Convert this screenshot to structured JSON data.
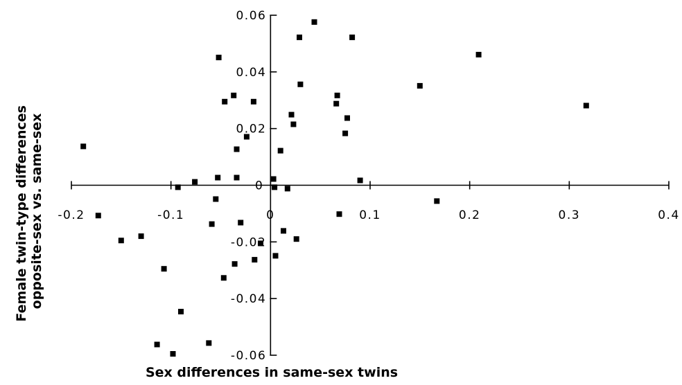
{
  "chart_data": {
    "type": "scatter",
    "xlabel": "Sex differences in same-sex twins",
    "ylabel_lines": [
      "Female twin-type differences",
      "opposite-sex vs. same-sex"
    ],
    "xlim": [
      -0.2,
      0.4
    ],
    "ylim": [
      -0.06,
      0.06
    ],
    "xticks": [
      -0.2,
      -0.1,
      0,
      0.1,
      0.2,
      0.3,
      0.4
    ],
    "xtick_labels": [
      "-0.2",
      "-0.1",
      "0",
      "0.1",
      "0.2",
      "0.3",
      "0.4"
    ],
    "yticks": [
      -0.06,
      -0.04,
      -0.02,
      0,
      0.02,
      0.04,
      0.06
    ],
    "ytick_labels": [
      "-0.06",
      "-0.04",
      "-0.02",
      "0",
      "0.02",
      "0.04",
      "0.06"
    ],
    "grid": false,
    "legend": "none",
    "marker_color": "#000000",
    "points": [
      {
        "x": -0.188,
        "y": 0.0137
      },
      {
        "x": -0.173,
        "y": -0.0107
      },
      {
        "x": -0.15,
        "y": -0.0195
      },
      {
        "x": -0.13,
        "y": -0.018
      },
      {
        "x": -0.107,
        "y": -0.0295
      },
      {
        "x": -0.114,
        "y": -0.0562
      },
      {
        "x": -0.098,
        "y": -0.0595
      },
      {
        "x": -0.09,
        "y": -0.0446
      },
      {
        "x": -0.093,
        "y": -0.0007
      },
      {
        "x": -0.076,
        "y": 0.0012
      },
      {
        "x": -0.062,
        "y": -0.0557
      },
      {
        "x": -0.059,
        "y": -0.0137
      },
      {
        "x": -0.055,
        "y": -0.0049
      },
      {
        "x": -0.053,
        "y": 0.0027
      },
      {
        "x": -0.052,
        "y": 0.0451
      },
      {
        "x": -0.046,
        "y": 0.0295
      },
      {
        "x": -0.047,
        "y": -0.0327
      },
      {
        "x": -0.037,
        "y": 0.0317
      },
      {
        "x": -0.036,
        "y": -0.0278
      },
      {
        "x": -0.034,
        "y": 0.0127
      },
      {
        "x": -0.034,
        "y": 0.0027
      },
      {
        "x": -0.03,
        "y": -0.0132
      },
      {
        "x": -0.024,
        "y": 0.0171
      },
      {
        "x": -0.017,
        "y": 0.0295
      },
      {
        "x": -0.016,
        "y": -0.0263
      },
      {
        "x": -0.01,
        "y": -0.0205
      },
      {
        "x": 0.003,
        "y": 0.0022
      },
      {
        "x": 0.004,
        "y": -0.0007
      },
      {
        "x": 0.005,
        "y": -0.0249
      },
      {
        "x": 0.01,
        "y": 0.0122
      },
      {
        "x": 0.013,
        "y": -0.0161
      },
      {
        "x": 0.017,
        "y": -0.0012
      },
      {
        "x": 0.021,
        "y": 0.0249
      },
      {
        "x": 0.023,
        "y": 0.0215
      },
      {
        "x": 0.026,
        "y": -0.019
      },
      {
        "x": 0.029,
        "y": 0.0522
      },
      {
        "x": 0.03,
        "y": 0.0356
      },
      {
        "x": 0.044,
        "y": 0.0576
      },
      {
        "x": 0.066,
        "y": 0.0288
      },
      {
        "x": 0.067,
        "y": 0.0317
      },
      {
        "x": 0.069,
        "y": -0.0102
      },
      {
        "x": 0.075,
        "y": 0.0183
      },
      {
        "x": 0.077,
        "y": 0.0237
      },
      {
        "x": 0.082,
        "y": 0.0522
      },
      {
        "x": 0.09,
        "y": 0.0017
      },
      {
        "x": 0.15,
        "y": 0.0351
      },
      {
        "x": 0.167,
        "y": -0.0056
      },
      {
        "x": 0.209,
        "y": 0.0461
      },
      {
        "x": 0.317,
        "y": 0.0281
      }
    ]
  }
}
